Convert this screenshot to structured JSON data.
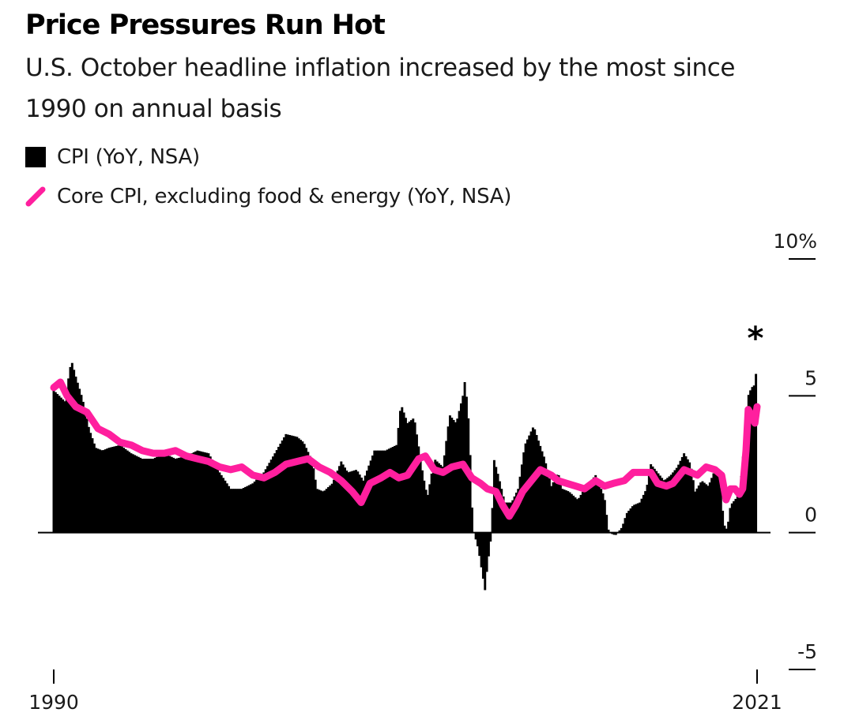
{
  "title": "Price Pressures Run Hot",
  "subtitle": "U.S. October headline inflation increased by the most since 1990 on annual basis",
  "legend": [
    {
      "label": "CPI (YoY, NSA)",
      "icon": "square-swatch",
      "color": "#000000"
    },
    {
      "label": "Core CPI, excluding food & energy (YoY, NSA)",
      "icon": "line-swatch",
      "color": "#ff1f9e"
    }
  ],
  "annotation": "*",
  "chart_data": {
    "type": "bar",
    "xlim": [
      1990,
      2021.8
    ],
    "ylim": [
      -5,
      10
    ],
    "y_ticks": [
      {
        "value": 10,
        "label": "10%"
      },
      {
        "value": 5,
        "label": "5"
      },
      {
        "value": 0,
        "label": "0"
      },
      {
        "value": -5,
        "label": "-5"
      }
    ],
    "x_ticks": [
      {
        "value": 1990,
        "label": "1990"
      },
      {
        "value": 2021.8,
        "label": "2021"
      }
    ],
    "grid": false,
    "legend_position": "top-left",
    "series": [
      {
        "name": "CPI (YoY, NSA)",
        "type": "bar",
        "color": "#000000",
        "points": [
          [
            1990.0,
            5.2
          ],
          [
            1990.5,
            4.8
          ],
          [
            1990.8,
            6.3
          ],
          [
            1991.0,
            5.7
          ],
          [
            1991.3,
            4.9
          ],
          [
            1991.6,
            3.8
          ],
          [
            1991.9,
            3.1
          ],
          [
            1992.2,
            3.0
          ],
          [
            1992.5,
            3.1
          ],
          [
            1993.0,
            3.2
          ],
          [
            1993.5,
            2.9
          ],
          [
            1994.0,
            2.7
          ],
          [
            1994.5,
            2.7
          ],
          [
            1995.0,
            2.9
          ],
          [
            1995.5,
            2.7
          ],
          [
            1996.0,
            2.8
          ],
          [
            1996.5,
            3.0
          ],
          [
            1997.0,
            2.9
          ],
          [
            1997.5,
            2.2
          ],
          [
            1998.0,
            1.6
          ],
          [
            1998.5,
            1.6
          ],
          [
            1999.0,
            1.8
          ],
          [
            1999.5,
            2.2
          ],
          [
            2000.0,
            2.9
          ],
          [
            2000.5,
            3.6
          ],
          [
            2001.0,
            3.5
          ],
          [
            2001.3,
            3.3
          ],
          [
            2001.7,
            2.6
          ],
          [
            2001.9,
            1.6
          ],
          [
            2002.2,
            1.5
          ],
          [
            2002.6,
            1.8
          ],
          [
            2003.0,
            2.6
          ],
          [
            2003.3,
            2.2
          ],
          [
            2003.7,
            2.3
          ],
          [
            2004.0,
            1.9
          ],
          [
            2004.5,
            3.0
          ],
          [
            2005.0,
            3.0
          ],
          [
            2005.5,
            3.2
          ],
          [
            2005.7,
            4.7
          ],
          [
            2006.0,
            4.0
          ],
          [
            2006.3,
            4.2
          ],
          [
            2006.7,
            2.1
          ],
          [
            2006.9,
            1.3
          ],
          [
            2007.2,
            2.7
          ],
          [
            2007.6,
            2.4
          ],
          [
            2007.9,
            4.3
          ],
          [
            2008.2,
            4.0
          ],
          [
            2008.5,
            5.0
          ],
          [
            2008.6,
            5.6
          ],
          [
            2008.8,
            3.7
          ],
          [
            2008.9,
            1.1
          ],
          [
            2009.0,
            0.0
          ],
          [
            2009.2,
            -0.6
          ],
          [
            2009.5,
            -2.1
          ],
          [
            2009.6,
            -1.3
          ],
          [
            2009.8,
            0.0
          ],
          [
            2009.9,
            2.7
          ],
          [
            2010.1,
            2.1
          ],
          [
            2010.4,
            1.1
          ],
          [
            2010.7,
            1.1
          ],
          [
            2011.0,
            1.6
          ],
          [
            2011.3,
            3.2
          ],
          [
            2011.7,
            3.9
          ],
          [
            2011.9,
            3.4
          ],
          [
            2012.2,
            2.7
          ],
          [
            2012.5,
            1.7
          ],
          [
            2012.8,
            2.2
          ],
          [
            2013.0,
            1.6
          ],
          [
            2013.3,
            1.5
          ],
          [
            2013.7,
            1.2
          ],
          [
            2014.0,
            1.6
          ],
          [
            2014.5,
            2.1
          ],
          [
            2014.9,
            1.3
          ],
          [
            2015.1,
            0.0
          ],
          [
            2015.4,
            -0.1
          ],
          [
            2015.7,
            0.2
          ],
          [
            2015.9,
            0.7
          ],
          [
            2016.2,
            1.0
          ],
          [
            2016.5,
            1.1
          ],
          [
            2016.8,
            1.6
          ],
          [
            2017.0,
            2.5
          ],
          [
            2017.3,
            2.2
          ],
          [
            2017.6,
            1.9
          ],
          [
            2017.9,
            2.1
          ],
          [
            2018.2,
            2.4
          ],
          [
            2018.5,
            2.9
          ],
          [
            2018.8,
            2.5
          ],
          [
            2019.0,
            1.5
          ],
          [
            2019.3,
            1.9
          ],
          [
            2019.6,
            1.7
          ],
          [
            2019.9,
            2.3
          ],
          [
            2020.1,
            2.3
          ],
          [
            2020.3,
            0.3
          ],
          [
            2020.45,
            0.1
          ],
          [
            2020.6,
            1.0
          ],
          [
            2020.8,
            1.2
          ],
          [
            2021.0,
            1.4
          ],
          [
            2021.15,
            2.6
          ],
          [
            2021.3,
            4.2
          ],
          [
            2021.4,
            5.0
          ],
          [
            2021.55,
            5.3
          ],
          [
            2021.7,
            5.4
          ],
          [
            2021.8,
            6.2
          ]
        ]
      },
      {
        "name": "Core CPI, excluding food & energy (YoY, NSA)",
        "type": "line",
        "color": "#ff1f9e",
        "points": [
          [
            1990.0,
            5.3
          ],
          [
            1990.3,
            5.5
          ],
          [
            1990.6,
            5.0
          ],
          [
            1991.0,
            4.6
          ],
          [
            1991.5,
            4.4
          ],
          [
            1992.0,
            3.8
          ],
          [
            1992.5,
            3.6
          ],
          [
            1993.0,
            3.3
          ],
          [
            1993.5,
            3.2
          ],
          [
            1994.0,
            3.0
          ],
          [
            1994.5,
            2.9
          ],
          [
            1995.0,
            2.9
          ],
          [
            1995.5,
            3.0
          ],
          [
            1996.0,
            2.8
          ],
          [
            1996.5,
            2.7
          ],
          [
            1997.0,
            2.6
          ],
          [
            1997.5,
            2.4
          ],
          [
            1998.0,
            2.3
          ],
          [
            1998.5,
            2.4
          ],
          [
            1999.0,
            2.1
          ],
          [
            1999.5,
            2.0
          ],
          [
            2000.0,
            2.2
          ],
          [
            2000.5,
            2.5
          ],
          [
            2001.0,
            2.6
          ],
          [
            2001.5,
            2.7
          ],
          [
            2002.0,
            2.4
          ],
          [
            2002.5,
            2.2
          ],
          [
            2003.0,
            1.9
          ],
          [
            2003.5,
            1.5
          ],
          [
            2003.9,
            1.1
          ],
          [
            2004.3,
            1.8
          ],
          [
            2004.8,
            2.0
          ],
          [
            2005.2,
            2.2
          ],
          [
            2005.6,
            2.0
          ],
          [
            2006.0,
            2.1
          ],
          [
            2006.5,
            2.7
          ],
          [
            2006.8,
            2.8
          ],
          [
            2007.2,
            2.3
          ],
          [
            2007.6,
            2.2
          ],
          [
            2008.0,
            2.4
          ],
          [
            2008.5,
            2.5
          ],
          [
            2008.9,
            2.0
          ],
          [
            2009.3,
            1.8
          ],
          [
            2009.6,
            1.6
          ],
          [
            2010.0,
            1.5
          ],
          [
            2010.3,
            1.0
          ],
          [
            2010.6,
            0.6
          ],
          [
            2010.9,
            1.0
          ],
          [
            2011.2,
            1.5
          ],
          [
            2011.6,
            1.9
          ],
          [
            2012.0,
            2.3
          ],
          [
            2012.5,
            2.1
          ],
          [
            2012.8,
            1.9
          ],
          [
            2013.2,
            1.8
          ],
          [
            2013.6,
            1.7
          ],
          [
            2014.0,
            1.6
          ],
          [
            2014.5,
            1.9
          ],
          [
            2014.9,
            1.7
          ],
          [
            2015.3,
            1.8
          ],
          [
            2015.8,
            1.9
          ],
          [
            2016.2,
            2.2
          ],
          [
            2016.6,
            2.2
          ],
          [
            2017.0,
            2.2
          ],
          [
            2017.3,
            1.8
          ],
          [
            2017.7,
            1.7
          ],
          [
            2018.0,
            1.8
          ],
          [
            2018.5,
            2.3
          ],
          [
            2018.8,
            2.2
          ],
          [
            2019.1,
            2.1
          ],
          [
            2019.5,
            2.4
          ],
          [
            2019.9,
            2.3
          ],
          [
            2020.2,
            2.1
          ],
          [
            2020.4,
            1.2
          ],
          [
            2020.6,
            1.6
          ],
          [
            2020.8,
            1.6
          ],
          [
            2021.0,
            1.4
          ],
          [
            2021.15,
            1.6
          ],
          [
            2021.3,
            3.0
          ],
          [
            2021.4,
            4.5
          ],
          [
            2021.55,
            4.3
          ],
          [
            2021.7,
            4.0
          ],
          [
            2021.8,
            4.6
          ]
        ]
      }
    ]
  }
}
